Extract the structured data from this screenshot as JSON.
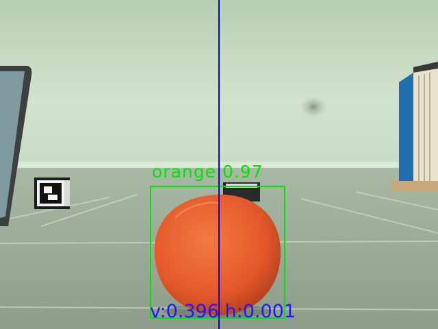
{
  "detection": {
    "label": "orange",
    "score": "0.97",
    "box_color": "#00e600"
  },
  "readout": {
    "v": "v:0.396",
    "h": "h:0.001",
    "color": "#1a1aff"
  },
  "guide_line_color": "#0000ff"
}
